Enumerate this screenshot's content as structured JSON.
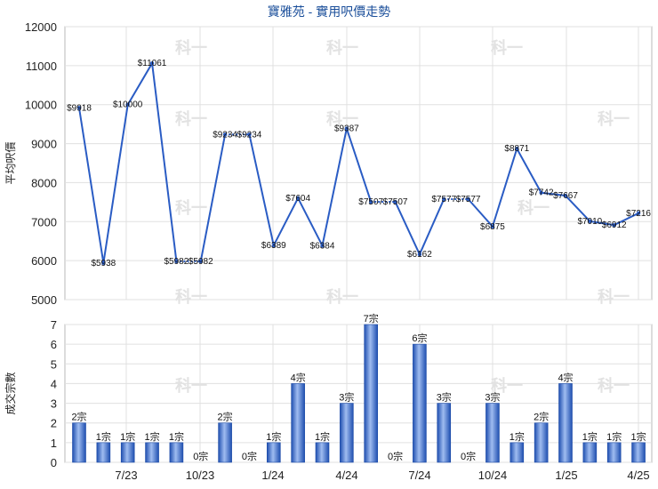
{
  "chart_data": [
    {
      "type": "line",
      "title": "寶雅苑 - 實用呎價走勢",
      "ylabel": "平均呎價",
      "ylim": [
        5000,
        12000
      ],
      "yticks": [
        "5000",
        "6000",
        "7000",
        "8000",
        "9000",
        "10000",
        "11000",
        "12000"
      ],
      "series": [
        {
          "values": [
            9918,
            5938,
            10000,
            11061,
            5982,
            5982,
            9234,
            9234,
            6389,
            7604,
            6384,
            9387,
            7507,
            7507,
            6162,
            7577,
            7577,
            6875,
            8871,
            7742,
            7667,
            7010,
            6912,
            7216
          ],
          "labels": [
            "$9918",
            "$5938",
            "$10000",
            "$11061",
            "$5982",
            "$5982",
            "$9234",
            "$9234",
            "$6389",
            "$7604",
            "$6384",
            "$9387",
            "$7507",
            "$7507",
            "$6162",
            "$7577",
            "$7577",
            "$6875",
            "$8871",
            "$7742",
            "$7667",
            "$7010",
            "$6912",
            "$7216"
          ]
        }
      ],
      "color": "#2a5cc4"
    },
    {
      "type": "bar",
      "ylabel": "成交宗數",
      "ylim": [
        0,
        7
      ],
      "yticks": [
        "0",
        "1",
        "2",
        "3",
        "4",
        "5",
        "6",
        "7"
      ],
      "values": [
        2,
        1,
        1,
        1,
        1,
        0,
        2,
        0,
        1,
        4,
        1,
        3,
        7,
        0,
        6,
        3,
        0,
        3,
        1,
        2,
        4,
        1,
        1,
        1
      ],
      "labels": [
        "2宗",
        "1宗",
        "1宗",
        "1宗",
        "1宗",
        "0宗",
        "2宗",
        "0宗",
        "1宗",
        "4宗",
        "1宗",
        "3宗",
        "7宗",
        "0宗",
        "6宗",
        "3宗",
        "0宗",
        "3宗",
        "1宗",
        "2宗",
        "4宗",
        "1宗",
        "1宗",
        "1宗"
      ],
      "xticks": [
        "7/23",
        "10/23",
        "1/24",
        "4/24",
        "7/24",
        "10/24",
        "1/25",
        "4/25"
      ],
      "color": "#3a6bd1"
    }
  ],
  "watermark": "科一"
}
